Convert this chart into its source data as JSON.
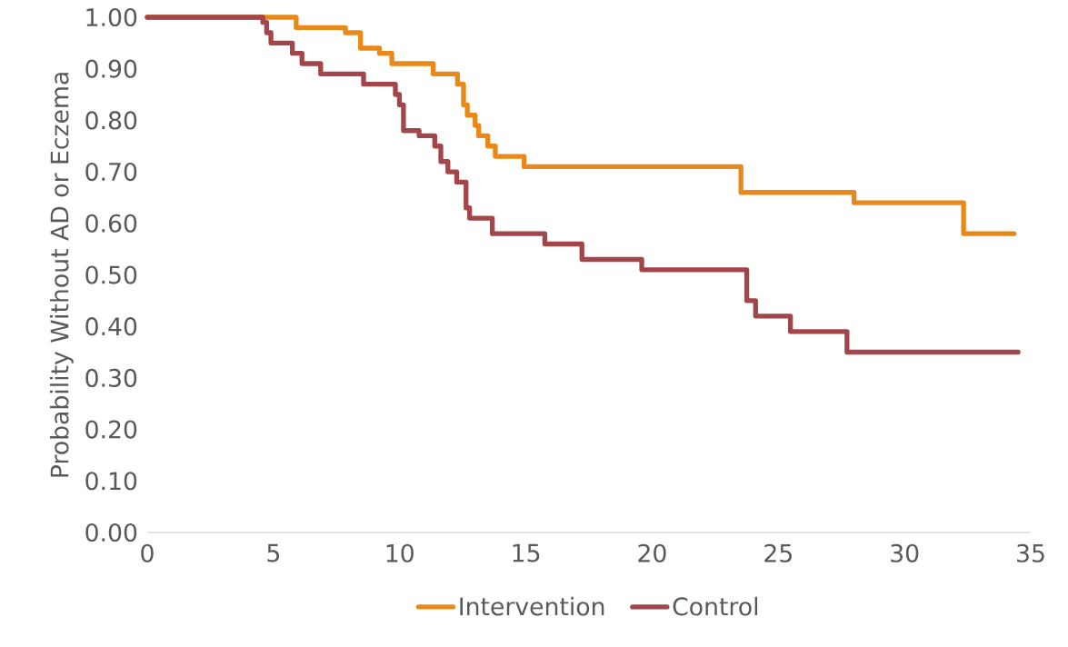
{
  "chart_data": {
    "type": "step",
    "ylabel": "Probability Without AD or Eczema",
    "xlim": [
      0,
      35
    ],
    "xticks": [
      0,
      5,
      10,
      15,
      20,
      25,
      30,
      35
    ],
    "ylim": [
      0,
      1
    ],
    "yticks": [
      {
        "value": 0,
        "label": "0.00"
      },
      {
        "value": 0.1,
        "label": "0.10"
      },
      {
        "value": 0.2,
        "label": "0.20"
      },
      {
        "value": 0.3,
        "label": "0.30"
      },
      {
        "value": 0.4,
        "label": "0.40"
      },
      {
        "value": 0.5,
        "label": "0.50"
      },
      {
        "value": 0.6,
        "label": "0.60"
      },
      {
        "value": 0.7,
        "label": "0.70"
      },
      {
        "value": 0.8,
        "label": "0.80"
      },
      {
        "value": 0.9,
        "label": "0.90"
      },
      {
        "value": 1,
        "label": "1.00"
      }
    ],
    "grid": false,
    "legend": "bottom",
    "series": [
      {
        "name": "Intervention",
        "color": "#e8891a",
        "x": [
          0,
          5.9,
          7.85,
          8.45,
          9.2,
          9.69,
          11.33,
          12.29,
          12.53,
          12.68,
          12.99,
          13.13,
          13.49,
          13.79,
          14.93,
          23.52,
          28.0,
          32.34,
          34.34
        ],
        "values": [
          1.0,
          0.98,
          0.97,
          0.94,
          0.93,
          0.91,
          0.89,
          0.87,
          0.83,
          0.81,
          0.79,
          0.77,
          0.75,
          0.73,
          0.71,
          0.66,
          0.64,
          0.58,
          0.58
        ]
      },
      {
        "name": "Control",
        "color": "#a3464b",
        "x": [
          0,
          4.58,
          4.73,
          4.9,
          5.75,
          6.13,
          6.87,
          8.57,
          9.83,
          9.99,
          10.15,
          10.77,
          11.39,
          11.63,
          11.91,
          12.26,
          12.63,
          12.77,
          13.67,
          15.75,
          17.22,
          19.59,
          23.75,
          24.1,
          25.48,
          27.72,
          34.5
        ],
        "values": [
          1.0,
          0.99,
          0.97,
          0.95,
          0.93,
          0.91,
          0.89,
          0.87,
          0.85,
          0.83,
          0.78,
          0.77,
          0.75,
          0.72,
          0.7,
          0.68,
          0.63,
          0.61,
          0.58,
          0.56,
          0.53,
          0.51,
          0.45,
          0.42,
          0.39,
          0.35,
          0.35
        ]
      }
    ]
  }
}
